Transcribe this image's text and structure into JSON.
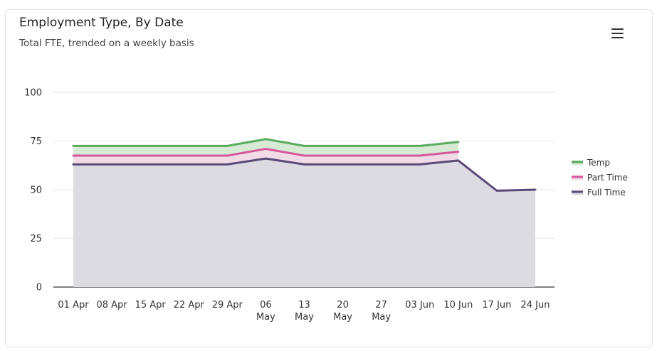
{
  "header": {
    "title": "Employment Type, By Date",
    "subtitle": "Total FTE, trended on a weekly basis"
  },
  "menu": {
    "icon": "hamburger-menu-icon"
  },
  "chart_data": {
    "type": "area",
    "title": "Employment Type, By Date",
    "subtitle": "Total FTE, trended on a weekly basis",
    "categories": [
      [
        "01 Apr"
      ],
      [
        "08 Apr"
      ],
      [
        "15 Apr"
      ],
      [
        "22 Apr"
      ],
      [
        "29 Apr"
      ],
      [
        "06",
        "May"
      ],
      [
        "13",
        "May"
      ],
      [
        "20",
        "May"
      ],
      [
        "27",
        "May"
      ],
      [
        "03 Jun"
      ],
      [
        "10 Jun"
      ],
      [
        "17 Jun"
      ],
      [
        "24 Jun"
      ]
    ],
    "ylim": [
      0,
      100
    ],
    "yticks": [
      0,
      25,
      50,
      75,
      100
    ],
    "grid": true,
    "legend_position": "right",
    "series": [
      {
        "name": "Temp",
        "color": "#5aac5e",
        "fill": "#d6ead6",
        "values": [
          72.5,
          72.5,
          72.5,
          72.5,
          72.5,
          76,
          72.5,
          72.5,
          72.5,
          72.5,
          74.5,
          null,
          null
        ]
      },
      {
        "name": "Part Time",
        "color": "#d5579a",
        "fill": "#f0dbe6",
        "values": [
          67.5,
          67.5,
          67.5,
          67.5,
          67.5,
          71,
          67.5,
          67.5,
          67.5,
          67.5,
          69.5,
          null,
          null
        ]
      },
      {
        "name": "Full Time",
        "color": "#5a4a78",
        "fill": "#dcdbe2",
        "values": [
          63,
          63,
          63,
          63,
          63,
          66,
          63,
          63,
          63,
          63,
          65,
          49.5,
          50
        ]
      }
    ]
  }
}
